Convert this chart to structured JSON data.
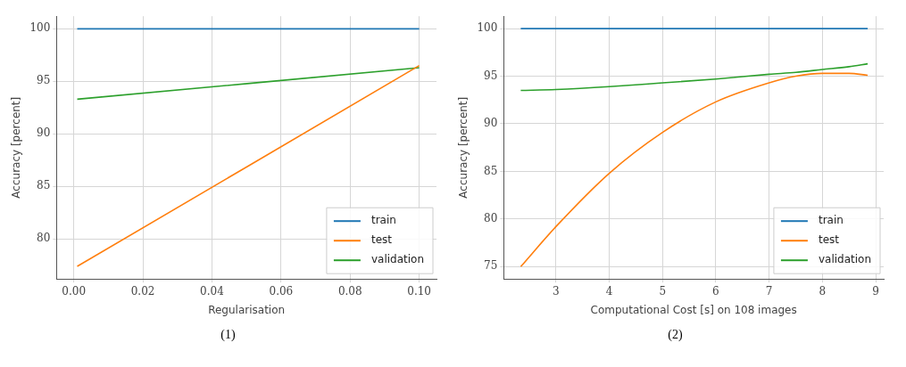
{
  "chart_data": [
    {
      "type": "line",
      "xlabel": "Regularisation",
      "ylabel": "Accuracy [percent]",
      "annotations": [
        "(1)"
      ],
      "x": [
        0.001,
        0.1
      ],
      "series": [
        {
          "name": "train",
          "color": "#1f77b4",
          "values": [
            100,
            100
          ]
        },
        {
          "name": "test",
          "color": "#ff7f0e",
          "values": [
            77.4,
            96.5
          ]
        },
        {
          "name": "validation",
          "color": "#2ca02c",
          "values": [
            93.3,
            96.3
          ]
        }
      ],
      "xlim": [
        -0.005,
        0.105
      ],
      "ylim": [
        76.2,
        101.2
      ],
      "xticks": [
        {
          "value": 0,
          "label": "0.00"
        },
        {
          "value": 0.02,
          "label": "0.02"
        },
        {
          "value": 0.04,
          "label": "0.04"
        },
        {
          "value": 0.06,
          "label": "0.06"
        },
        {
          "value": 0.08,
          "label": "0.08"
        },
        {
          "value": 0.1,
          "label": "0.10"
        }
      ],
      "yticks": [
        80,
        85,
        90,
        95,
        100
      ],
      "grid": true,
      "legend": "bottom right",
      "marker": "none",
      "line_style": "solid"
    },
    {
      "type": "line",
      "xlabel": "Computational Cost [s] on 108 images",
      "ylabel": "Accuracy [percent]",
      "annotations": [
        "(2)"
      ],
      "x": [
        2.34,
        3,
        4,
        5,
        6,
        7,
        7.5,
        8,
        8.5,
        8.85
      ],
      "series": [
        {
          "name": "train",
          "color": "#1f77b4",
          "values": [
            100,
            100,
            100,
            100,
            100,
            100,
            100,
            100,
            100,
            100
          ]
        },
        {
          "name": "test",
          "color": "#ff7f0e",
          "values": [
            75,
            79.2,
            84.8,
            89.1,
            92.3,
            94.3,
            95,
            95.3,
            95.3,
            95.1
          ]
        },
        {
          "name": "validation",
          "color": "#2ca02c",
          "values": [
            93.5,
            93.6,
            93.9,
            94.3,
            94.7,
            95.2,
            95.4,
            95.7,
            96,
            96.3
          ]
        }
      ],
      "xlim": [
        2.02,
        9.15
      ],
      "ylim": [
        73.7,
        101.3
      ],
      "xticks": [
        3,
        4,
        5,
        6,
        7,
        8,
        9
      ],
      "yticks": [
        75,
        80,
        85,
        90,
        95,
        100
      ],
      "grid": true,
      "legend": "bottom right",
      "marker": "none",
      "line_style": "solid"
    }
  ]
}
